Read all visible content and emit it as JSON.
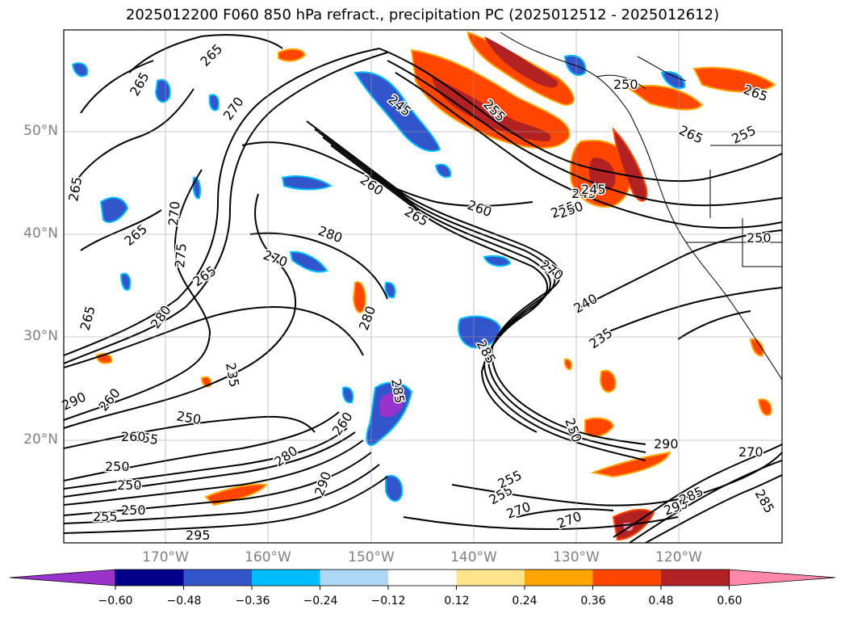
{
  "title": "2025012200 F060 850 hPa refract., precipitation PC (2025012512 - 2025012612)",
  "lat_labels": [
    "50°N",
    "40°N",
    "30°N",
    "20°N"
  ],
  "lon_labels": [
    "170°W",
    "160°W",
    "150°W",
    "140°W",
    "130°W",
    "120°W"
  ],
  "colorbar": {
    "ticks": [
      "−0.60",
      "−0.48",
      "−0.36",
      "−0.24",
      "−0.12",
      "0.12",
      "0.24",
      "0.36",
      "0.48",
      "0.60"
    ],
    "colors": [
      "#9933cc",
      "#00008b",
      "#3355cc",
      "#00bfff",
      "#add8f5",
      "#ffffff",
      "#ffe58a",
      "#ffa500",
      "#ff4500",
      "#b22222",
      "#ff88aa"
    ]
  },
  "contour_labels": [
    "265",
    "270",
    "245",
    "255",
    "260",
    "265",
    "260",
    "255",
    "250",
    "265",
    "265",
    "270",
    "270",
    "280",
    "265",
    "270",
    "275",
    "265",
    "280",
    "280",
    "265",
    "285",
    "245",
    "240",
    "235",
    "250",
    "235",
    "260",
    "250",
    "255",
    "260",
    "250",
    "250",
    "290",
    "290",
    "255",
    "250",
    "255",
    "260",
    "280",
    "285",
    "290",
    "255",
    "270",
    "270",
    "285",
    "295",
    "285",
    "270",
    "255",
    "265",
    "245",
    "250",
    "250",
    "265",
    "295"
  ]
}
